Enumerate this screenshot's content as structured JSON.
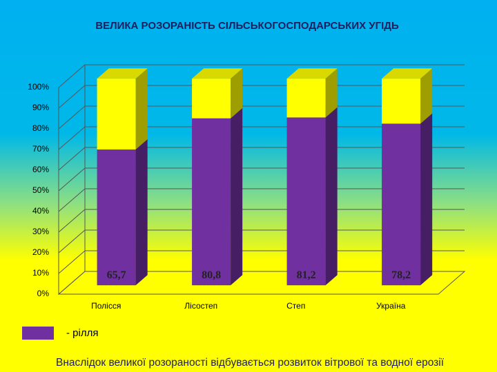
{
  "chart_data": {
    "type": "bar3d_stacked",
    "title": "ВЕЛИКА РОЗОРАНІСТЬ СІЛЬСЬКОГОСПОДАРСЬКИХ УГІДЬ",
    "categories": [
      "Полісся",
      "Лісостеп",
      "Степ",
      "Україна"
    ],
    "series": [
      {
        "name": "- рілля",
        "color": "#7030a0",
        "values": [
          65.7,
          80.8,
          81.2,
          78.2
        ],
        "value_labels": [
          "65,7",
          "80,8",
          "81,2",
          "78,2"
        ]
      },
      {
        "color": "#ffff00",
        "values": [
          34.3,
          19.2,
          18.8,
          21.8
        ]
      }
    ],
    "ylim": [
      0,
      100
    ],
    "yticks": [
      {
        "value": 0,
        "label": "0%"
      },
      {
        "value": 10,
        "label": "10%"
      },
      {
        "value": 20,
        "label": "20%"
      },
      {
        "value": 30,
        "label": "30%"
      },
      {
        "value": 40,
        "label": "40%"
      },
      {
        "value": 50,
        "label": "50%"
      },
      {
        "value": 60,
        "label": "60%"
      },
      {
        "value": 70,
        "label": "70%"
      },
      {
        "value": 80,
        "label": "80%"
      },
      {
        "value": 90,
        "label": "90%"
      },
      {
        "value": 100,
        "label": "100%"
      }
    ],
    "grid": true,
    "footnote": "Внаслідок великої розораності відбувається розвиток  вітрової та водної ерозії"
  }
}
